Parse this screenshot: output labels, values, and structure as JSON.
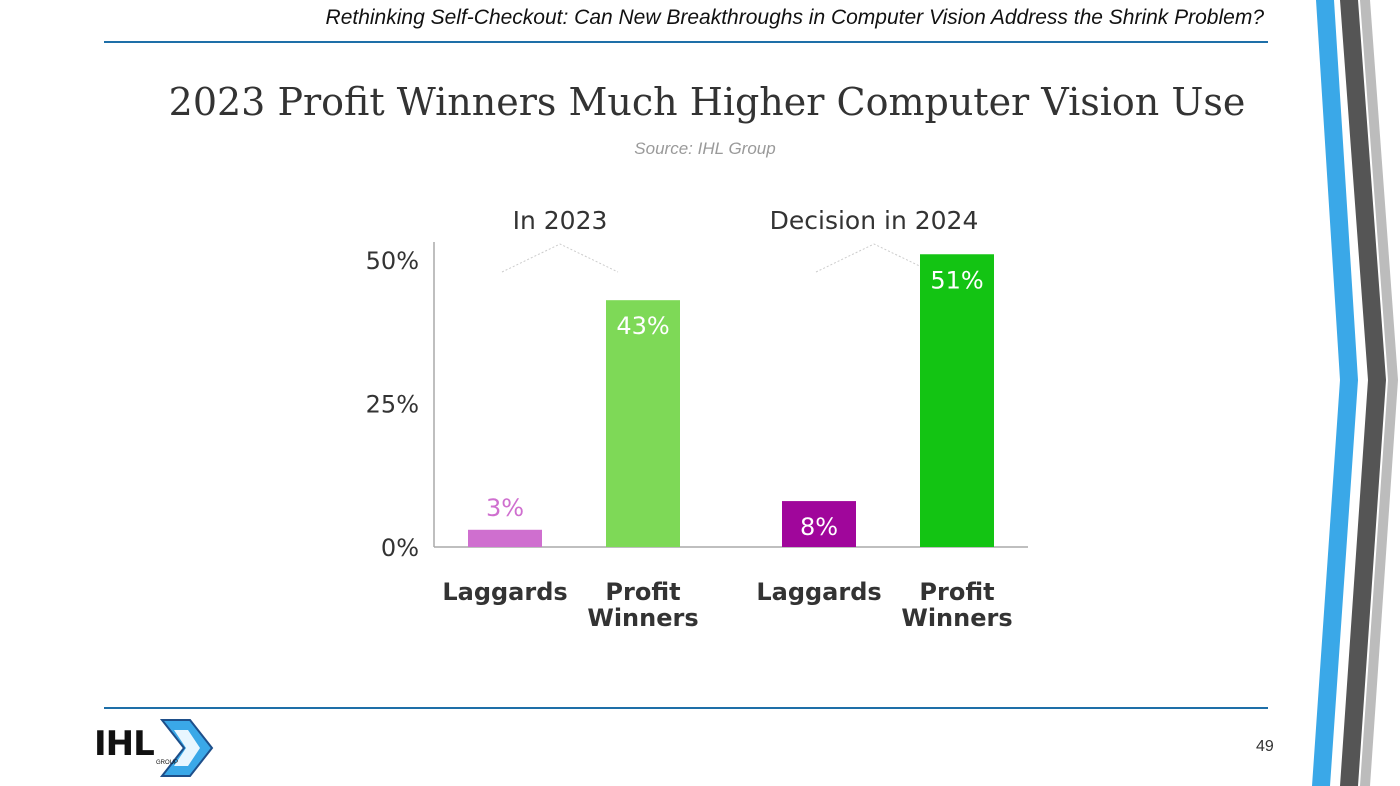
{
  "header": {
    "subtitle": "Rethinking Self-Checkout: Can New Breakthroughs in Computer Vision Address the Shrink Problem?"
  },
  "slide": {
    "title": "2023 Profit Winners Much Higher Computer Vision Use",
    "source": "Source: IHL Group",
    "page_number": "49"
  },
  "logo": {
    "text": "IHL",
    "subtext": "GROUP"
  },
  "colors": {
    "rule": "#1e6fa8",
    "laggards_light": "#cf6fcf",
    "laggards_dark": "#a0069b",
    "winners_light": "#7ed957",
    "winners_dark": "#13c413",
    "deco_blue": "#3aa8e8",
    "deco_gray": "#555555"
  },
  "chart_data": {
    "type": "bar",
    "ylim": [
      0,
      50
    ],
    "yticks": [
      "0%",
      "25%",
      "50%"
    ],
    "yticks_values": [
      0,
      25,
      50
    ],
    "groups": [
      {
        "label": "In 2023",
        "bars": [
          {
            "category": "Laggards",
            "value": 3,
            "label": "3%",
            "color": "#cf6fcf",
            "label_inside": false
          },
          {
            "category": "Profit Winners",
            "value": 43,
            "label": "43%",
            "color": "#7ed957",
            "label_inside": true
          }
        ]
      },
      {
        "label": "Decision in 2024",
        "bars": [
          {
            "category": "Laggards",
            "value": 8,
            "label": "8%",
            "color": "#a0069b",
            "label_inside": true
          },
          {
            "category": "Profit Winners",
            "value": 51,
            "label": "51%",
            "color": "#13c413",
            "label_inside": true
          }
        ]
      }
    ]
  }
}
